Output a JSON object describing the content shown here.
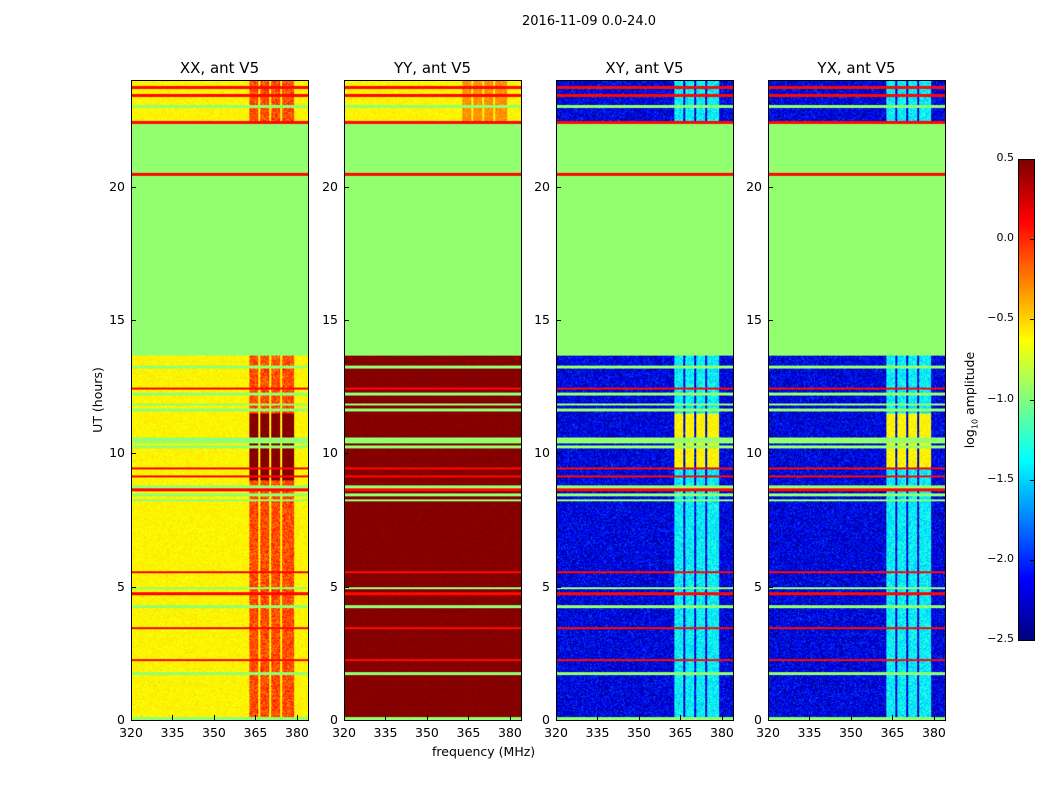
{
  "chart_data": {
    "type": "heatmap",
    "title": "2016-11-09 0.0-24.0",
    "xlabel": "frequency (MHz)",
    "ylabel": "UT (hours)",
    "xlim": [
      320,
      384
    ],
    "ylim": [
      0,
      24
    ],
    "xticks": [
      320,
      335,
      350,
      365,
      380
    ],
    "yticks": [
      0,
      5,
      10,
      15,
      20
    ],
    "colorbar": {
      "label": "log10 amplitude",
      "label_main": "log",
      "label_sub": "10",
      "label_rest": " amplitude",
      "range": [
        -2.5,
        0.5
      ],
      "ticks": [
        "0.5",
        "0.0",
        "−0.5",
        "−1.0",
        "−1.5",
        "−2.0",
        "−2.5"
      ],
      "tick_values": [
        0.5,
        0,
        -0.5,
        -1,
        -1.5,
        -2,
        -2.5
      ],
      "colormap": "jet"
    },
    "flagged_ranges_hours": [
      [
        13.7,
        20.45
      ],
      [
        20.6,
        22.4
      ]
    ],
    "flag_value": -0.95,
    "bright_channel_bands_mhz": [
      [
        362.5,
        366
      ],
      [
        366.7,
        370
      ],
      [
        370.7,
        374
      ],
      [
        374.7,
        379
      ]
    ],
    "panels": [
      {
        "title": "XX, ant V5",
        "base": -0.6,
        "band_level": -0.1,
        "strong_window": [
          9,
          11.5
        ],
        "strong_level": 0.5
      },
      {
        "title": "YY, ant V5",
        "base": 0.5,
        "band_level": 0.5,
        "top_base": -0.6,
        "strong_window": [
          22.4,
          24
        ],
        "strong_level": -0.3
      },
      {
        "title": "XY, ant V5",
        "base": -2.2,
        "band_level": -1.4,
        "strong_window": [
          9.5,
          11.5
        ],
        "strong_level": -0.6
      },
      {
        "title": "YX, ant V5",
        "base": -2.2,
        "band_level": -1.4,
        "strong_window": [
          9.5,
          11.5
        ],
        "strong_level": -0.6
      }
    ]
  }
}
